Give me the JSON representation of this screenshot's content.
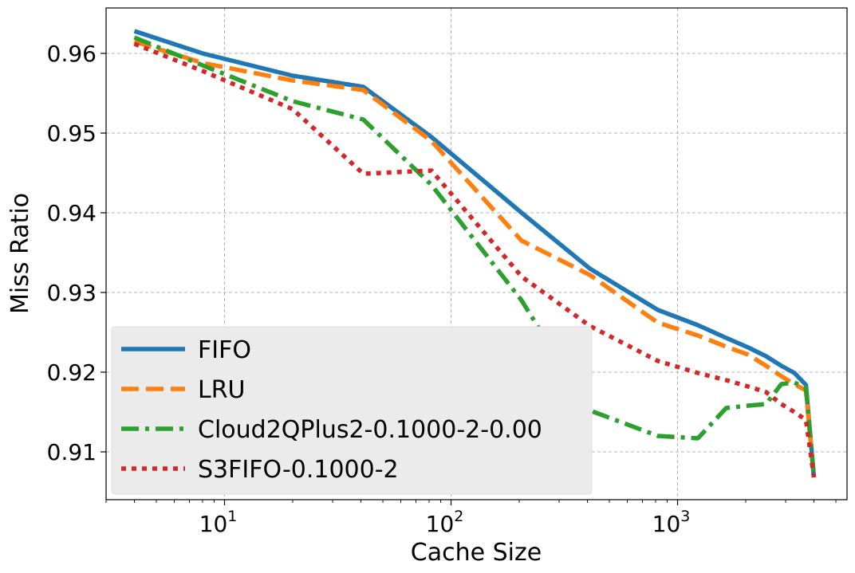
{
  "chart_data": {
    "type": "line",
    "xlabel": "Cache Size",
    "ylabel": "Miss Ratio",
    "xscale": "log",
    "xlim": [
      3,
      5600
    ],
    "ylim": [
      0.904,
      0.9657
    ],
    "grid": true,
    "legend_position": "lower-left",
    "x_ticks": [
      {
        "value": 10,
        "base": "10",
        "exp": "1"
      },
      {
        "value": 100,
        "base": "10",
        "exp": "2"
      },
      {
        "value": 1000,
        "base": "10",
        "exp": "3"
      }
    ],
    "y_ticks": [
      {
        "value": 0.91,
        "label": "0.91"
      },
      {
        "value": 0.92,
        "label": "0.92"
      },
      {
        "value": 0.93,
        "label": "0.93"
      },
      {
        "value": 0.94,
        "label": "0.94"
      },
      {
        "value": 0.95,
        "label": "0.95"
      },
      {
        "value": 0.96,
        "label": "0.96"
      }
    ],
    "series": [
      {
        "name": "FIFO",
        "color": "#1f77b4",
        "dash": "solid",
        "x": [
          4,
          8,
          20,
          41,
          82,
          205,
          410,
          820,
          1230,
          1640,
          2050,
          2460,
          2870,
          3280,
          3690,
          4000
        ],
        "y": [
          0.9628,
          0.96,
          0.9572,
          0.9558,
          0.9495,
          0.94,
          0.933,
          0.9278,
          0.9259,
          0.9243,
          0.9231,
          0.922,
          0.9208,
          0.9199,
          0.9184,
          0.9068
        ]
      },
      {
        "name": "LRU",
        "color": "#ff7f0e",
        "dash": "dashed",
        "x": [
          4,
          8,
          20,
          41,
          82,
          205,
          410,
          820,
          1230,
          1640,
          2050,
          2460,
          2870,
          3280,
          3690,
          4000
        ],
        "y": [
          0.9615,
          0.9588,
          0.9566,
          0.9554,
          0.949,
          0.9365,
          0.9322,
          0.9262,
          0.9246,
          0.9232,
          0.9222,
          0.9208,
          0.9195,
          0.9185,
          0.9177,
          0.9068
        ]
      },
      {
        "name": "Cloud2QPlus2-0.1000-2-0.00",
        "color": "#2ca02c",
        "dash": "dashdot",
        "x": [
          4,
          8,
          20,
          41,
          82,
          205,
          410,
          820,
          1230,
          1640,
          2050,
          2460,
          2870,
          3280,
          3690,
          4000
        ],
        "y": [
          0.962,
          0.9585,
          0.954,
          0.9517,
          0.9435,
          0.929,
          0.9152,
          0.912,
          0.9117,
          0.9155,
          0.9158,
          0.916,
          0.9185,
          0.9187,
          0.918,
          0.9068
        ]
      },
      {
        "name": "S3FIFO-0.1000-2",
        "color": "#d62728",
        "dash": "dotted",
        "x": [
          4,
          8,
          20,
          41,
          82,
          205,
          410,
          820,
          1230,
          1640,
          2050,
          2460,
          2870,
          3280,
          3690,
          4000
        ],
        "y": [
          0.9612,
          0.9578,
          0.953,
          0.9449,
          0.9453,
          0.932,
          0.9258,
          0.9214,
          0.9199,
          0.919,
          0.9182,
          0.9175,
          0.916,
          0.915,
          0.914,
          0.9068
        ]
      }
    ]
  }
}
